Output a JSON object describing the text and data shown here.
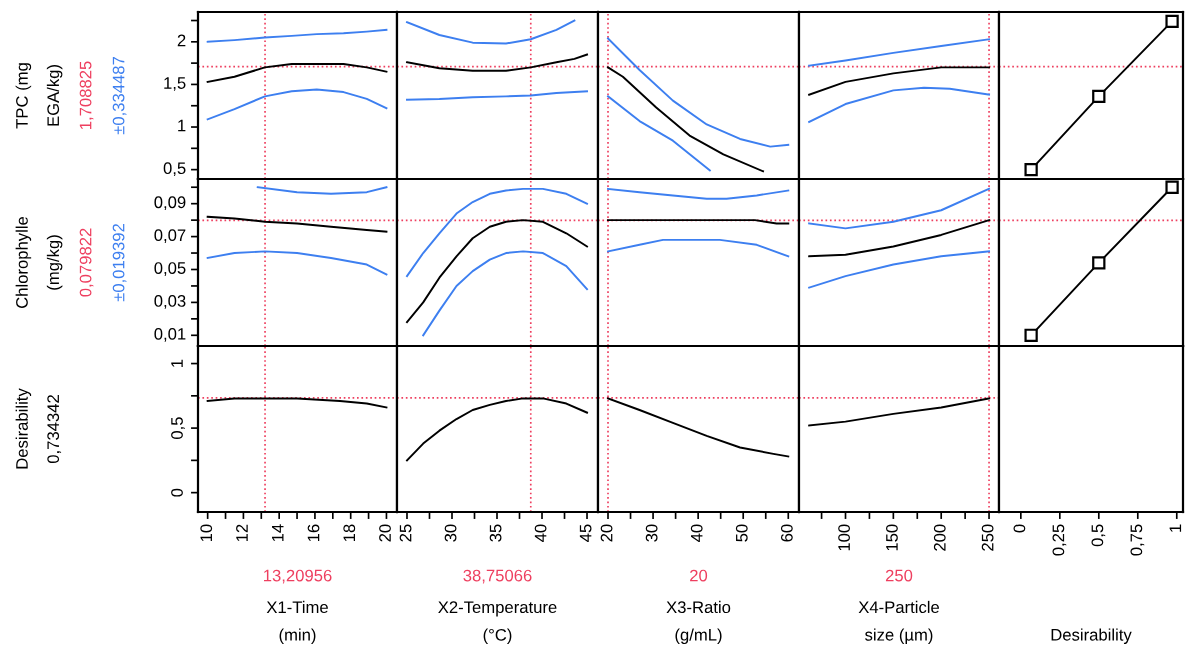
{
  "chart_data": [
    {
      "type": "line",
      "ylabel": "TPC (mg\nEGA/kg)",
      "annotations": [
        "±0,334487"
      ],
      "tick_labels": "y",
      "xlim": [
        9.46,
        20.59
      ],
      "ylim": [
        0.39,
        2.35
      ],
      "yticks": [
        {
          "value": 0.5,
          "label": "0,5"
        },
        {
          "value": 0.75,
          "label": null
        },
        1,
        {
          "value": 1.25,
          "label": null
        },
        {
          "value": 1.5,
          "label": "1,5"
        },
        {
          "value": 1.75,
          "label": null
        },
        2,
        {
          "value": 2.25,
          "label": null
        }
      ],
      "series": [
        {
          "color": "#000000",
          "x": [
            10,
            11.5,
            13.2,
            14.7,
            16.1,
            17.6,
            18.9,
            20
          ],
          "values": [
            1.53,
            1.59,
            1.7,
            1.74,
            1.74,
            1.74,
            1.7,
            1.65
          ]
        },
        {
          "color": "#3d7ff0",
          "x": [
            10,
            11.5,
            13.2,
            14.7,
            16.1,
            17.6,
            18.9,
            20
          ],
          "values": [
            2.0,
            2.02,
            2.05,
            2.07,
            2.09,
            2.1,
            2.12,
            2.14
          ]
        },
        {
          "color": "#3d7ff0",
          "x": [
            10,
            11.5,
            13.2,
            14.7,
            16.1,
            17.6,
            18.9,
            20
          ],
          "values": [
            1.09,
            1.21,
            1.36,
            1.42,
            1.44,
            1.41,
            1.33,
            1.22
          ]
        }
      ],
      "ref_lines": [
        {
          "axis": "y",
          "value": 1.708825,
          "label": "1,708825",
          "color": "#ee3f5f",
          "line_style": "dotted"
        },
        {
          "axis": "x",
          "value": 13.20956,
          "color": "#ee3f5f",
          "line_style": "dotted"
        }
      ]
    },
    {
      "type": "line",
      "tick_labels": false,
      "xlim": [
        23.89,
        46.22
      ],
      "ylim": [
        0.39,
        2.35
      ],
      "series": [
        {
          "color": "#000000",
          "x": [
            25,
            28.6,
            32.3,
            36,
            38.75,
            41.6,
            43.6,
            45
          ],
          "values": [
            1.76,
            1.69,
            1.66,
            1.66,
            1.7,
            1.76,
            1.8,
            1.85
          ]
        },
        {
          "color": "#3d7ff0",
          "x": [
            25,
            28.6,
            32.3,
            36,
            38.75,
            41.6,
            43.6
          ],
          "values": [
            2.23,
            2.08,
            1.99,
            1.98,
            2.03,
            2.14,
            2.25
          ]
        },
        {
          "color": "#3d7ff0",
          "x": [
            25,
            28.6,
            32.3,
            36,
            38.75,
            41.6,
            43.6,
            45
          ],
          "values": [
            1.32,
            1.33,
            1.35,
            1.36,
            1.37,
            1.4,
            1.41,
            1.42
          ]
        }
      ],
      "ref_lines": [
        {
          "axis": "y",
          "value": 1.708825,
          "color": "#ee3f5f",
          "line_style": "dotted"
        },
        {
          "axis": "x",
          "value": 38.75066,
          "color": "#ee3f5f",
          "line_style": "dotted"
        }
      ]
    },
    {
      "type": "line",
      "tick_labels": false,
      "xlim": [
        17.78,
        62.38
      ],
      "ylim": [
        0.39,
        2.35
      ],
      "series": [
        {
          "color": "#000000",
          "x": [
            20,
            23.3,
            30.7,
            38.1,
            45.6,
            54.4
          ],
          "values": [
            1.7,
            1.59,
            1.23,
            0.9,
            0.68,
            0.48
          ]
        },
        {
          "color": "#3d7ff0",
          "x": [
            20,
            27,
            34.4,
            41.9,
            49.3,
            56,
            60
          ],
          "values": [
            2.04,
            1.67,
            1.31,
            1.03,
            0.86,
            0.77,
            0.79
          ]
        },
        {
          "color": "#3d7ff0",
          "x": [
            20,
            27,
            34.4,
            42.6
          ],
          "values": [
            1.36,
            1.07,
            0.84,
            0.49
          ]
        }
      ],
      "ref_lines": [
        {
          "axis": "y",
          "value": 1.708825,
          "color": "#ee3f5f",
          "line_style": "dotted"
        },
        {
          "axis": "x",
          "value": 20,
          "color": "#ee3f5f",
          "line_style": "dotted"
        }
      ]
    },
    {
      "type": "line",
      "tick_labels": false,
      "xlim": [
        51.4,
        260.4
      ],
      "ylim": [
        0.39,
        2.35
      ],
      "series": [
        {
          "color": "#000000",
          "x": [
            62,
            100,
            150,
            200,
            250
          ],
          "values": [
            1.38,
            1.53,
            1.63,
            1.7,
            1.7
          ]
        },
        {
          "color": "#3d7ff0",
          "x": [
            62,
            100,
            150,
            200,
            250
          ],
          "values": [
            1.72,
            1.78,
            1.87,
            1.95,
            2.03
          ]
        },
        {
          "color": "#3d7ff0",
          "x": [
            62,
            100,
            150,
            182,
            209,
            250
          ],
          "values": [
            1.06,
            1.27,
            1.43,
            1.46,
            1.45,
            1.38
          ]
        }
      ],
      "ref_lines": [
        {
          "axis": "y",
          "value": 1.708825,
          "color": "#ee3f5f",
          "line_style": "dotted"
        },
        {
          "axis": "x",
          "value": 250,
          "color": "#ee3f5f",
          "line_style": "dotted"
        }
      ]
    },
    {
      "type": "line",
      "marker": "square",
      "tick_labels": false,
      "xlim": [
        -0.14,
        1.04
      ],
      "ylim": [
        0.39,
        2.35
      ],
      "series": [
        {
          "color": "#000000",
          "x": [
            0.066,
            0.5,
            0.97
          ],
          "values": [
            0.5,
            1.36,
            2.24
          ]
        }
      ],
      "ref_lines": [
        {
          "axis": "y",
          "value": 1.708825,
          "color": "#ee3f5f",
          "line_style": "dotted"
        }
      ]
    },
    {
      "type": "line",
      "ylabel": "Chlorophylle\n(mg/kg)",
      "annotations": [
        "±0,019392"
      ],
      "tick_labels": "y",
      "xlim": [
        9.46,
        20.59
      ],
      "ylim": [
        0.0035,
        0.105
      ],
      "yticks": [
        {
          "value": 0.01,
          "label": "0,01"
        },
        {
          "value": 0.02,
          "label": null
        },
        {
          "value": 0.03,
          "label": "0,03"
        },
        {
          "value": 0.04,
          "label": null
        },
        {
          "value": 0.05,
          "label": "0,05"
        },
        {
          "value": 0.06,
          "label": null
        },
        {
          "value": 0.07,
          "label": "0,07"
        },
        {
          "value": 0.08,
          "label": null
        },
        {
          "value": 0.09,
          "label": "0,09"
        },
        {
          "value": 0.1,
          "label": null
        }
      ],
      "series": [
        {
          "color": "#000000",
          "x": [
            10,
            11.5,
            13.2,
            15,
            16.9,
            18.9,
            20
          ],
          "values": [
            0.082,
            0.081,
            0.079,
            0.078,
            0.076,
            0.074,
            0.073
          ]
        },
        {
          "color": "#3d7ff0",
          "x": [
            12.8,
            15,
            16.9,
            18.9,
            20
          ],
          "values": [
            0.1,
            0.097,
            0.096,
            0.097,
            0.1
          ]
        },
        {
          "color": "#3d7ff0",
          "x": [
            10,
            11.5,
            13.2,
            15,
            16.9,
            18.9,
            20
          ],
          "values": [
            0.057,
            0.06,
            0.061,
            0.06,
            0.057,
            0.053,
            0.047
          ]
        }
      ],
      "ref_lines": [
        {
          "axis": "y",
          "value": 0.079822,
          "label": "0,079822",
          "color": "#ee3f5f",
          "line_style": "dotted"
        },
        {
          "axis": "x",
          "value": 13.20956,
          "color": "#ee3f5f",
          "line_style": "dotted"
        }
      ]
    },
    {
      "type": "line",
      "tick_labels": false,
      "xlim": [
        23.89,
        46.22
      ],
      "ylim": [
        0.0035,
        0.105
      ],
      "series": [
        {
          "color": "#000000",
          "x": [
            25,
            26.8,
            28.6,
            30.5,
            32.3,
            34.2,
            36,
            37.9,
            40.1,
            42.7,
            45
          ],
          "values": [
            0.018,
            0.03,
            0.045,
            0.058,
            0.069,
            0.076,
            0.079,
            0.08,
            0.079,
            0.072,
            0.064
          ]
        },
        {
          "color": "#3d7ff0",
          "x": [
            25,
            26.8,
            28.6,
            30.5,
            32.3,
            34.2,
            36,
            37.9,
            40.1,
            42.7,
            45
          ],
          "values": [
            0.046,
            0.06,
            0.072,
            0.084,
            0.091,
            0.096,
            0.098,
            0.099,
            0.099,
            0.096,
            0.09
          ]
        },
        {
          "color": "#3d7ff0",
          "x": [
            26.8,
            28.6,
            30.5,
            32.3,
            34.2,
            36,
            37.9,
            40.1,
            42.7,
            45
          ],
          "values": [
            0.01,
            0.025,
            0.04,
            0.049,
            0.056,
            0.06,
            0.061,
            0.06,
            0.052,
            0.038
          ]
        }
      ],
      "ref_lines": [
        {
          "axis": "y",
          "value": 0.079822,
          "color": "#ee3f5f",
          "line_style": "dotted"
        },
        {
          "axis": "x",
          "value": 38.75066,
          "color": "#ee3f5f",
          "line_style": "dotted"
        }
      ]
    },
    {
      "type": "line",
      "tick_labels": false,
      "xlim": [
        17.78,
        62.38
      ],
      "ylim": [
        0.0035,
        0.105
      ],
      "series": [
        {
          "color": "#000000",
          "x": [
            20,
            40,
            52.6,
            57.4,
            60
          ],
          "values": [
            0.08,
            0.08,
            0.08,
            0.078,
            0.078
          ]
        },
        {
          "color": "#3d7ff0",
          "x": [
            20,
            27,
            34.4,
            41.9,
            46.3,
            53,
            60
          ],
          "values": [
            0.099,
            0.097,
            0.095,
            0.093,
            0.093,
            0.095,
            0.098
          ]
        },
        {
          "color": "#3d7ff0",
          "x": [
            20,
            27,
            32.2,
            44.8,
            53,
            60
          ],
          "values": [
            0.061,
            0.065,
            0.068,
            0.068,
            0.065,
            0.058
          ]
        }
      ],
      "ref_lines": [
        {
          "axis": "y",
          "value": 0.079822,
          "color": "#ee3f5f",
          "line_style": "dotted"
        },
        {
          "axis": "x",
          "value": 20,
          "color": "#ee3f5f",
          "line_style": "dotted"
        }
      ]
    },
    {
      "type": "line",
      "tick_labels": false,
      "xlim": [
        51.4,
        260.4
      ],
      "ylim": [
        0.0035,
        0.105
      ],
      "series": [
        {
          "color": "#000000",
          "x": [
            62,
            100,
            150,
            200,
            250
          ],
          "values": [
            0.058,
            0.059,
            0.064,
            0.071,
            0.08
          ]
        },
        {
          "color": "#3d7ff0",
          "x": [
            62,
            100,
            150,
            200,
            250
          ],
          "values": [
            0.078,
            0.075,
            0.079,
            0.086,
            0.099
          ]
        },
        {
          "color": "#3d7ff0",
          "x": [
            62,
            100,
            150,
            200,
            250
          ],
          "values": [
            0.039,
            0.046,
            0.053,
            0.058,
            0.061
          ]
        }
      ],
      "ref_lines": [
        {
          "axis": "y",
          "value": 0.079822,
          "color": "#ee3f5f",
          "line_style": "dotted"
        },
        {
          "axis": "x",
          "value": 250,
          "color": "#ee3f5f",
          "line_style": "dotted"
        }
      ]
    },
    {
      "type": "line",
      "marker": "square",
      "tick_labels": false,
      "xlim": [
        -0.14,
        1.04
      ],
      "ylim": [
        0.0035,
        0.105
      ],
      "series": [
        {
          "color": "#000000",
          "x": [
            0.066,
            0.5,
            0.97
          ],
          "values": [
            0.01,
            0.054,
            0.1
          ]
        }
      ],
      "ref_lines": [
        {
          "axis": "y",
          "value": 0.079822,
          "color": "#ee3f5f",
          "line_style": "dotted"
        }
      ]
    },
    {
      "type": "line",
      "ylabel": "Desirability\n0,734342",
      "xlabel": "X1-Time\n(min)",
      "xlim": [
        9.46,
        20.59
      ],
      "ylim": [
        -0.15,
        1.136
      ],
      "yticks": [
        0,
        {
          "value": 0.25,
          "label": null
        },
        {
          "value": 0.5,
          "label": "0,5"
        },
        {
          "value": 0.75,
          "label": null
        },
        1
      ],
      "xticks": [
        10,
        {
          "value": 11,
          "label": null
        },
        12,
        {
          "value": 13,
          "label": null
        },
        14,
        {
          "value": 15,
          "label": null
        },
        16,
        {
          "value": 17,
          "label": null
        },
        18,
        {
          "value": 19,
          "label": null
        },
        20
      ],
      "series": [
        {
          "color": "#000000",
          "x": [
            10,
            11.5,
            13.2,
            15,
            17.4,
            18.9,
            20
          ],
          "values": [
            0.71,
            0.73,
            0.73,
            0.73,
            0.71,
            0.69,
            0.66
          ]
        }
      ],
      "ref_lines": [
        {
          "axis": "y",
          "value": 0.734342,
          "color": "#ee3f5f",
          "line_style": "dotted"
        },
        {
          "axis": "x",
          "value": 13.20956,
          "label": "13,20956",
          "color": "#ee3f5f",
          "line_style": "dotted"
        }
      ]
    },
    {
      "type": "line",
      "xlabel": "X2-Temperature\n(°C)",
      "tick_labels": "x",
      "xlim": [
        23.89,
        46.22
      ],
      "ylim": [
        -0.15,
        1.136
      ],
      "xticks": [
        25,
        {
          "value": 27.5,
          "label": null
        },
        30,
        {
          "value": 32.5,
          "label": null
        },
        35,
        {
          "value": 37.5,
          "label": null
        },
        40,
        {
          "value": 42.5,
          "label": null
        },
        45
      ],
      "series": [
        {
          "color": "#000000",
          "x": [
            25,
            26.8,
            28.6,
            30.5,
            32.3,
            34.2,
            36,
            37.9,
            40.1,
            42.7,
            45
          ],
          "values": [
            0.25,
            0.38,
            0.48,
            0.57,
            0.64,
            0.68,
            0.71,
            0.73,
            0.73,
            0.69,
            0.62
          ]
        }
      ],
      "ref_lines": [
        {
          "axis": "y",
          "value": 0.734342,
          "color": "#ee3f5f",
          "line_style": "dotted"
        },
        {
          "axis": "x",
          "value": 38.75066,
          "label": "38,75066",
          "color": "#ee3f5f",
          "line_style": "dotted"
        }
      ]
    },
    {
      "type": "line",
      "xlabel": "X3-Ratio\n(g/mL)",
      "tick_labels": "x",
      "xlim": [
        17.78,
        62.38
      ],
      "ylim": [
        -0.15,
        1.136
      ],
      "xticks": [
        20,
        {
          "value": 25,
          "label": null
        },
        30,
        {
          "value": 35,
          "label": null
        },
        40,
        {
          "value": 45,
          "label": null
        },
        50,
        {
          "value": 55,
          "label": null
        },
        60
      ],
      "series": [
        {
          "color": "#000000",
          "x": [
            20,
            27,
            34.4,
            41.9,
            49.3,
            56.7,
            60
          ],
          "values": [
            0.73,
            0.64,
            0.54,
            0.44,
            0.35,
            0.3,
            0.28
          ]
        }
      ],
      "ref_lines": [
        {
          "axis": "y",
          "value": 0.734342,
          "color": "#ee3f5f",
          "line_style": "dotted"
        },
        {
          "axis": "x",
          "value": 20,
          "label": "20",
          "color": "#ee3f5f",
          "line_style": "dotted"
        }
      ]
    },
    {
      "type": "line",
      "xlabel": "X4-Particle\nsize (µm)",
      "tick_labels": "x",
      "xlim": [
        51.4,
        260.4
      ],
      "ylim": [
        -0.15,
        1.136
      ],
      "xticks": [
        {
          "value": 75,
          "label": null
        },
        100,
        {
          "value": 125,
          "label": null
        },
        150,
        {
          "value": 175,
          "label": null
        },
        200,
        {
          "value": 225,
          "label": null
        },
        250
      ],
      "series": [
        {
          "color": "#000000",
          "x": [
            62,
            100,
            150,
            200,
            250
          ],
          "values": [
            0.52,
            0.55,
            0.61,
            0.66,
            0.73
          ]
        }
      ],
      "ref_lines": [
        {
          "axis": "y",
          "value": 0.734342,
          "color": "#ee3f5f",
          "line_style": "dotted"
        },
        {
          "axis": "x",
          "value": 250,
          "label": "250",
          "color": "#ee3f5f",
          "line_style": "dotted"
        }
      ]
    },
    {
      "type": "line",
      "xlabel": "Desirability",
      "tick_labels": "x",
      "xlim": [
        -0.14,
        1.04
      ],
      "ylim": [
        -0.15,
        1.136
      ],
      "xticks": [
        0,
        {
          "value": 0.25,
          "label": "0,25"
        },
        {
          "value": 0.5,
          "label": "0,5"
        },
        {
          "value": 0.75,
          "label": "0,75"
        },
        1
      ]
    }
  ]
}
